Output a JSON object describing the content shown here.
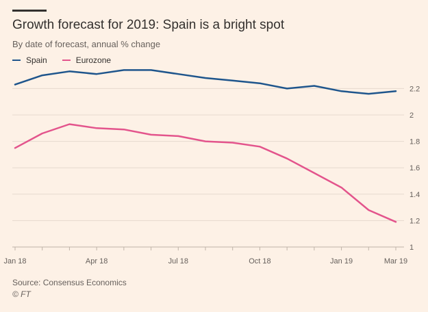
{
  "chart_data": {
    "type": "line",
    "title": "Growth forecast for 2019: Spain is a bright spot",
    "subtitle": "By date of forecast, annual % change",
    "x": [
      "Jan 18",
      "Feb 18",
      "Mar 18",
      "Apr 18",
      "May 18",
      "Jun 18",
      "Jul 18",
      "Aug 18",
      "Sep 18",
      "Oct 18",
      "Nov 18",
      "Dec 18",
      "Jan 19",
      "Feb 19",
      "Mar 19"
    ],
    "x_tick_labels": [
      "Jan 18",
      "Apr 18",
      "Jul 18",
      "Oct 18",
      "Jan 19",
      "Mar 19"
    ],
    "series": [
      {
        "name": "Spain",
        "color": "#1e558c",
        "values": [
          2.23,
          2.3,
          2.33,
          2.31,
          2.34,
          2.34,
          2.31,
          2.28,
          2.26,
          2.24,
          2.2,
          2.22,
          2.18,
          2.16,
          2.18
        ]
      },
      {
        "name": "Eurozone",
        "color": "#e3548c",
        "values": [
          1.75,
          1.86,
          1.93,
          1.9,
          1.89,
          1.85,
          1.84,
          1.8,
          1.79,
          1.76,
          1.67,
          1.56,
          1.45,
          1.28,
          1.19
        ]
      }
    ],
    "ylim": [
      1,
      2.4
    ],
    "y_ticks": [
      "1",
      "1.2",
      "1.4",
      "1.6",
      "1.8",
      "2",
      "2.2"
    ],
    "y_axis_side": "right",
    "grid": true,
    "legend_placement": "top-left"
  },
  "footer": {
    "source": "Source: Consensus Economics",
    "copyright": "© FT"
  },
  "colors": {
    "background": "#fdf1e6",
    "grid": "#e6d9ce",
    "spain": "#1e558c",
    "eurozone": "#e3548c"
  }
}
